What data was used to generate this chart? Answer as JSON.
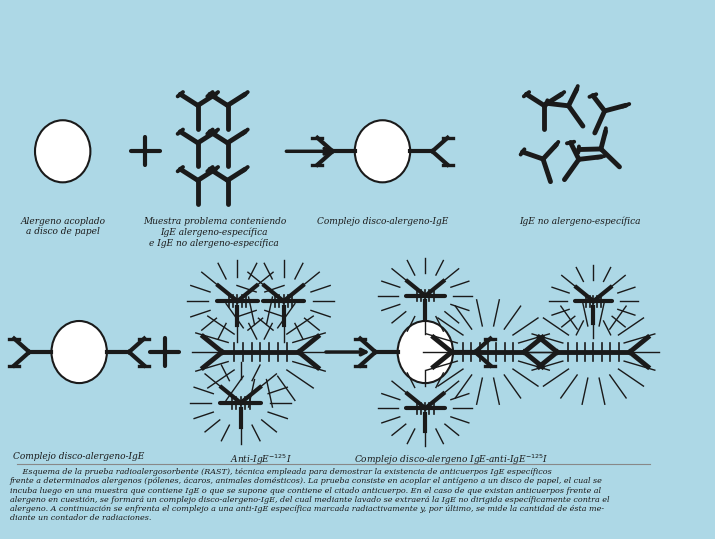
{
  "bg_color": "#add8e6",
  "white_disc_color": "#ffffff",
  "black_color": "#1a1a1a",
  "fig_width": 7.15,
  "fig_height": 5.39,
  "caption": "     Esquema de la prueba radioalergosorbente (RAST), tecnica empleada para demostrar la existencia de anticuerpos IgE especificos\nfrente a determinados alergenos (polenes, acaros, animales domesticos). La prueba consiste en acoplar el antigeno a un disco de papel, el cual se\nincuba luego en una muestra que contiene IgE o que se supone que contiene el citado anticuerpo. En el caso de que existan anticuerpos frente al\nalergeno en cuestion, se formara un complejo disco-alergeno-IgE, del cual mediante lavado se extraera la IgE no dirigida especificamente contra el\nalergeno. A continuacion se enfrenta el complejo a una anti-IgE especifica marcada radiactivamente y, por ultimo, se mide la cantidad de esta me-\ndiante un contador de radiaciones."
}
